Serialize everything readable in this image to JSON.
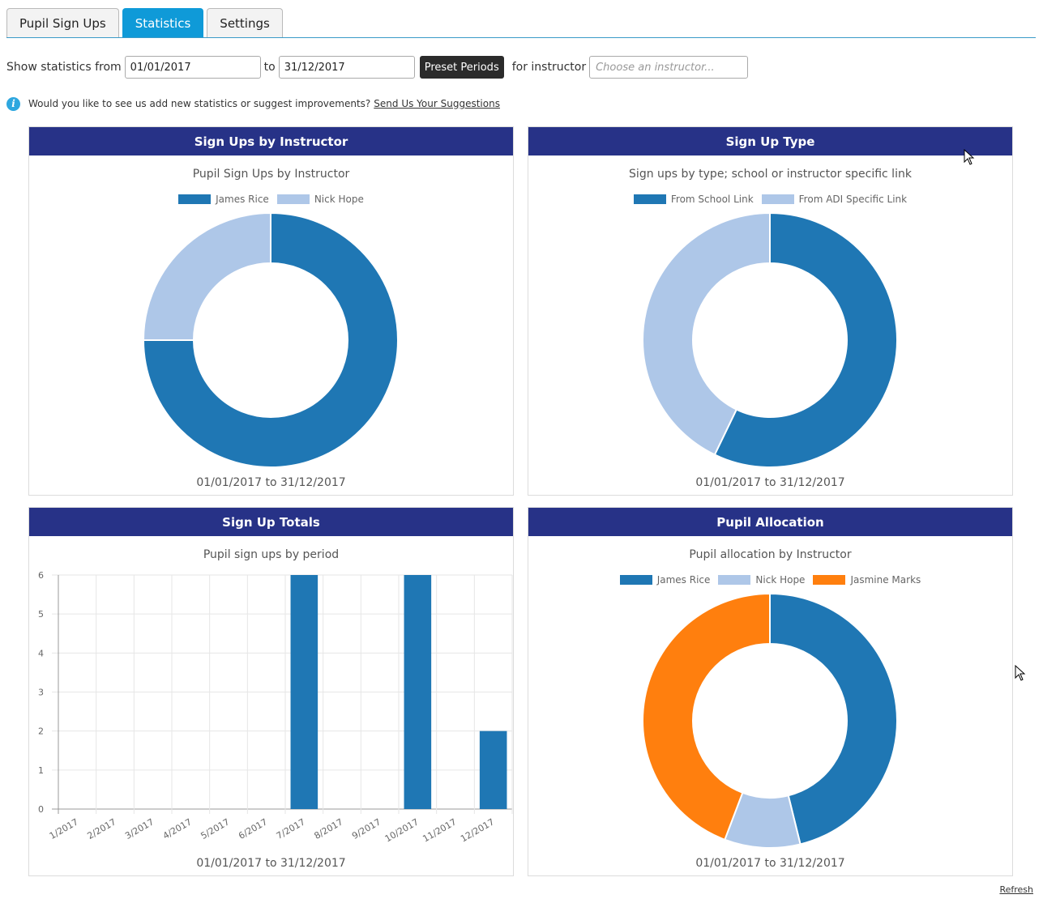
{
  "tabs": [
    {
      "label": "Pupil Sign Ups",
      "active": false
    },
    {
      "label": "Statistics",
      "active": true
    },
    {
      "label": "Settings",
      "active": false
    }
  ],
  "filter": {
    "show_from_label": "Show statistics from",
    "from_value": "01/01/2017",
    "to_label": "to",
    "to_value": "31/12/2017",
    "preset_button": "Preset Periods",
    "instructor_label": "for instructor",
    "instructor_placeholder": "Choose an instructor..."
  },
  "info": {
    "text": "Would you like to see us add new statistics or suggest improvements?",
    "link": "Send Us Your Suggestions"
  },
  "colors": {
    "header": "#273287",
    "dark_blue": "#1f77b4",
    "light_blue": "#aec7e8",
    "orange": "#ff7f0e"
  },
  "panels": {
    "instructor": {
      "heading": "Sign Ups by Instructor",
      "range": "01/01/2017 to 31/12/2017"
    },
    "type": {
      "heading": "Sign Up Type",
      "range": "01/01/2017 to 31/12/2017"
    },
    "totals": {
      "heading": "Sign Up Totals",
      "range": "01/01/2017 to 31/12/2017"
    },
    "allocation": {
      "heading": "Pupil Allocation",
      "range": "01/01/2017 to 31/12/2017"
    }
  },
  "refresh_label": "Refresh",
  "chart_data": [
    {
      "type": "pie",
      "title": "Pupil Sign Ups by Instructor",
      "labels": [
        "James Rice",
        "Nick Hope"
      ],
      "values": [
        3,
        1
      ],
      "colors": [
        "#1f77b4",
        "#aec7e8"
      ],
      "legend": "top"
    },
    {
      "type": "pie",
      "title": "Sign ups by type; school or instructor specific link",
      "labels": [
        "From School Link",
        "From ADI Specific Link"
      ],
      "values": [
        8,
        6
      ],
      "colors": [
        "#1f77b4",
        "#aec7e8"
      ],
      "legend": "top"
    },
    {
      "type": "bar",
      "title": "Pupil sign ups by period",
      "categories": [
        "1/2017",
        "2/2017",
        "3/2017",
        "4/2017",
        "5/2017",
        "6/2017",
        "7/2017",
        "8/2017",
        "9/2017",
        "10/2017",
        "11/2017",
        "12/2017"
      ],
      "values": [
        0,
        0,
        0,
        0,
        0,
        0,
        6,
        0,
        0,
        6,
        0,
        2
      ],
      "ylim": [
        0,
        6
      ],
      "yticks": [
        "0",
        "1",
        "2",
        "3",
        "4",
        "5",
        "6"
      ],
      "grid": true,
      "color": "#1f77b4"
    },
    {
      "type": "pie",
      "title": "Pupil allocation by Instructor",
      "labels": [
        "James Rice",
        "Nick Hope",
        "Jasmine Marks"
      ],
      "values": [
        6,
        1.25,
        5.75
      ],
      "colors": [
        "#1f77b4",
        "#aec7e8",
        "#ff7f0e"
      ],
      "legend": "top"
    }
  ]
}
